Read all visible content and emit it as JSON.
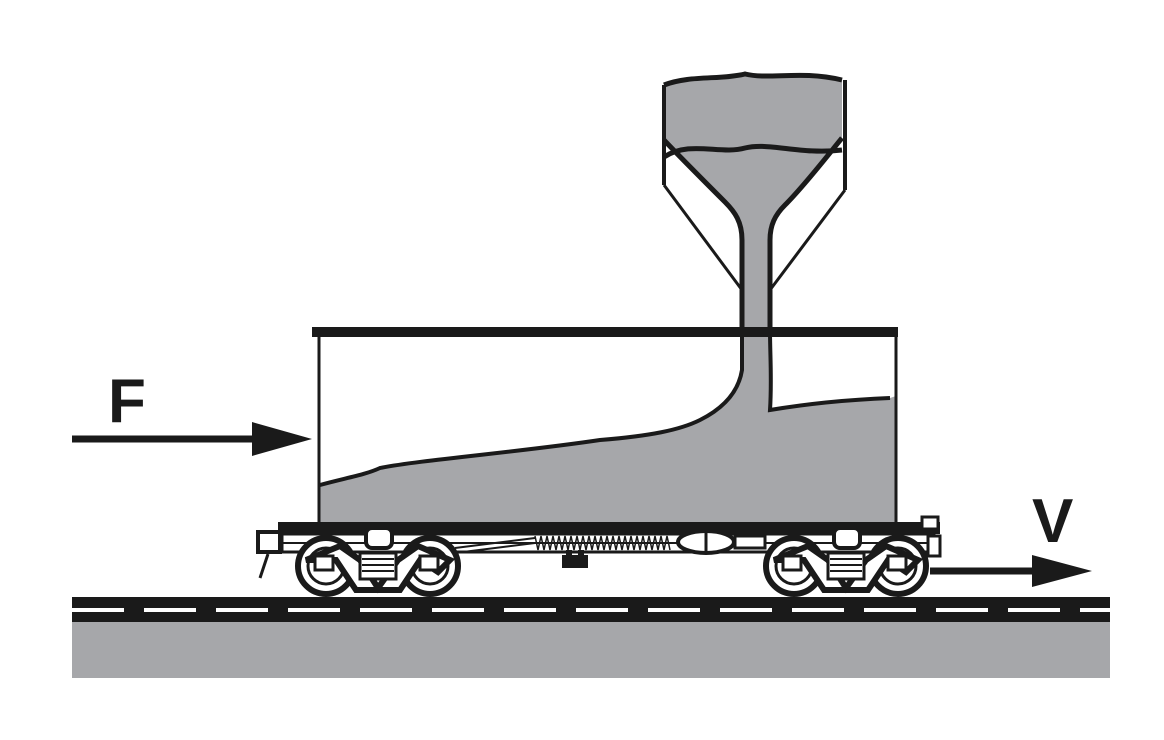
{
  "labels": {
    "force": "F",
    "velocity": "V"
  },
  "colors": {
    "sand": "#a6a7aa",
    "ink": "#1a1a1a",
    "ground": "#a6a7aa",
    "rail_dash": "#ffffff",
    "background": "#ffffff"
  }
}
